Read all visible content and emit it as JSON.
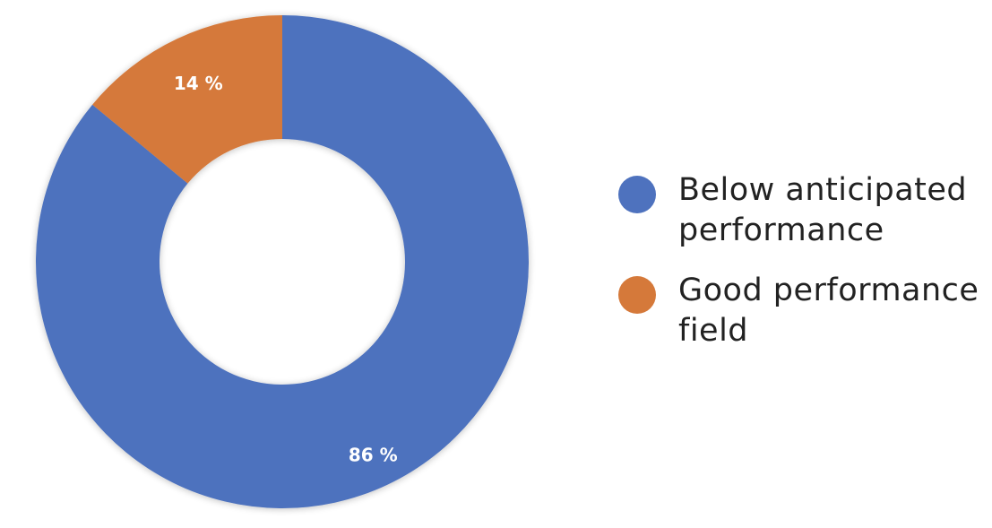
{
  "chart_data": {
    "type": "pie",
    "variant": "donut",
    "title": "",
    "categories": [
      "Below anticipated\nperformance",
      "Good performance\nfield"
    ],
    "values": [
      86,
      14
    ],
    "data_labels": [
      "86 %",
      "14 %"
    ],
    "colors": [
      "#4e72be",
      "#d5793a"
    ],
    "legend_position": "right"
  }
}
